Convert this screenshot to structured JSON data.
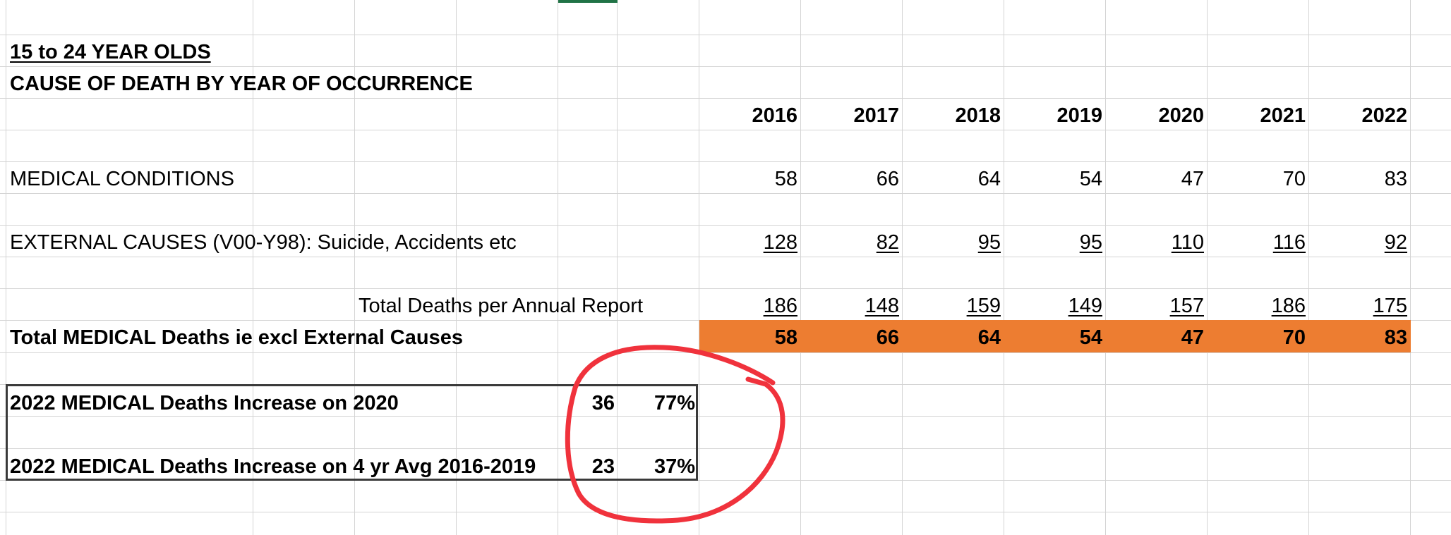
{
  "sheet": {
    "title": "15 to 24 YEAR OLDS",
    "subtitle": "CAUSE OF DEATH BY YEAR OF OCCURRENCE",
    "years": [
      "2016",
      "2017",
      "2018",
      "2019",
      "2020",
      "2021",
      "2022"
    ],
    "rows": {
      "medical": {
        "label": "MEDICAL CONDITIONS",
        "values": [
          "58",
          "66",
          "64",
          "54",
          "47",
          "70",
          "83"
        ]
      },
      "external": {
        "label": "EXTERNAL CAUSES (V00-Y98): Suicide, Accidents etc",
        "values": [
          "128",
          "82",
          "95",
          "95",
          "110",
          "116",
          "92"
        ]
      },
      "total": {
        "label": "Total Deaths per Annual Report",
        "values": [
          "186",
          "148",
          "159",
          "149",
          "157",
          "186",
          "175"
        ]
      },
      "medical_total": {
        "label": "Total MEDICAL Deaths ie excl External Causes",
        "values": [
          "58",
          "66",
          "64",
          "54",
          "47",
          "70",
          "83"
        ]
      }
    },
    "summary": [
      {
        "label": "2022 MEDICAL Deaths Increase on 2020",
        "count": "36",
        "pct": "77%"
      },
      {
        "label": "2022 MEDICAL Deaths Increase on 4 yr Avg 2016-2019",
        "count": "23",
        "pct": "37%"
      }
    ]
  },
  "colors": {
    "highlight": "#ED7D31",
    "annotation": "#F0323C",
    "gridline": "#d4d4d4",
    "selection": "#217346"
  }
}
